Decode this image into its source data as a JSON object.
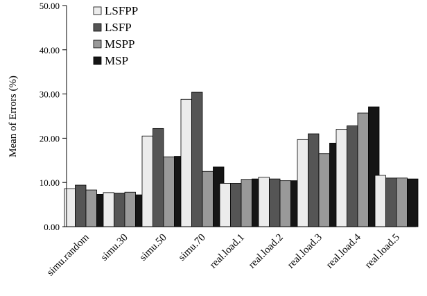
{
  "chart_data": {
    "type": "bar",
    "categories": [
      "simu.random",
      "simu.30",
      "simu.50",
      "simu.70",
      "real.load.1",
      "real.load.2",
      "real.load.3",
      "real.load.4",
      "real.load.5"
    ],
    "series": [
      {
        "name": "LSFPP",
        "color": "#ececec",
        "values": [
          8.6,
          7.7,
          20.5,
          28.8,
          9.8,
          11.2,
          19.7,
          22.0,
          11.6
        ]
      },
      {
        "name": "LSFP",
        "color": "#555555",
        "values": [
          9.4,
          7.6,
          22.2,
          30.4,
          9.8,
          10.8,
          21.0,
          22.8,
          11.0
        ]
      },
      {
        "name": "MSPP",
        "color": "#999999",
        "values": [
          8.3,
          7.8,
          15.8,
          12.5,
          10.7,
          10.4,
          16.5,
          25.7,
          11.0
        ]
      },
      {
        "name": "MSP",
        "color": "#151515",
        "values": [
          7.3,
          7.2,
          15.9,
          13.5,
          10.8,
          10.4,
          18.9,
          27.1,
          10.8
        ]
      }
    ],
    "ylabel": "Mean of Errors (%)",
    "xlabel": "",
    "ylim": [
      0,
      50
    ],
    "yticks": [
      "0.00",
      "10.00",
      "20.00",
      "30.00",
      "40.00",
      "50.00"
    ],
    "grid": false,
    "legend_position": "top-left"
  }
}
